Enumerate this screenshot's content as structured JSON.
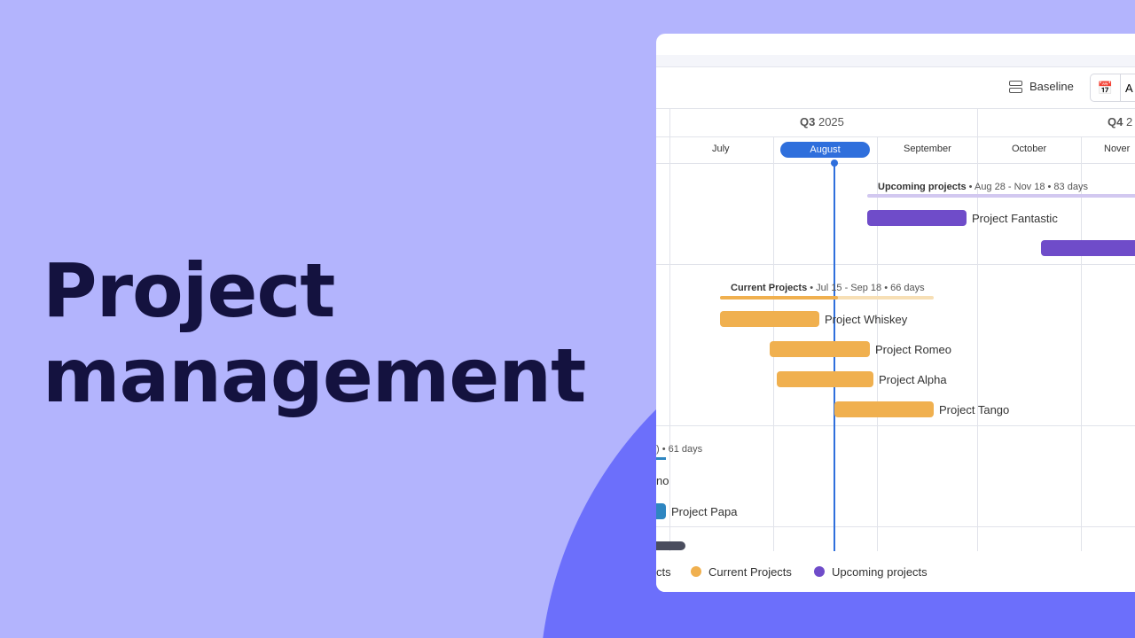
{
  "headline": [
    "Project",
    "management"
  ],
  "toolbar": {
    "baseline_label": "Baseline",
    "date_button_partial": "A"
  },
  "timeline": {
    "quarters": [
      {
        "q": "Q3",
        "year": "2025"
      },
      {
        "q": "Q4",
        "year": "2"
      }
    ],
    "months": [
      "July",
      "August",
      "September",
      "October",
      "Nover"
    ],
    "current_month": "August"
  },
  "groups": [
    {
      "name": "Upcoming projects",
      "summary": " • Aug 28 - Nov 18 • 83 days",
      "color": "#6f4cc9",
      "items": [
        "Project Fantastic"
      ]
    },
    {
      "name": "Current Projects",
      "summary": " • Jul 15 - Sep 18 • 66 days",
      "color": "#f0b04f",
      "items": [
        "Project Whiskey",
        "Project Romeo",
        "Project Alpha",
        "Project Tango"
      ]
    },
    {
      "partial_summary": ") • 61 days",
      "color": "#2e86c1",
      "items": [
        "no",
        "Project Papa"
      ]
    }
  ],
  "legend": [
    {
      "label": "cts",
      "color": "#4a4d5e"
    },
    {
      "label": "Current Projects",
      "color": "#f0b04f"
    },
    {
      "label": "Upcoming projects",
      "color": "#6f4cc9"
    }
  ],
  "colors": {
    "background": "#b3b4fd",
    "accent_circle": "#6c6ffb",
    "today": "#2f6fdc"
  }
}
